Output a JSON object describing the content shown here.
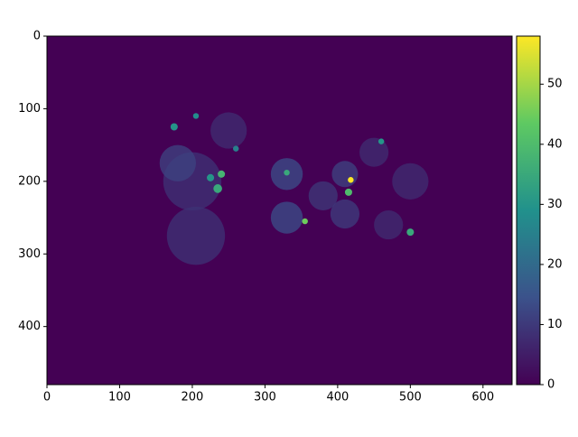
{
  "chart_data": {
    "type": "heatmap",
    "colormap": "viridis",
    "xlim": [
      0,
      640
    ],
    "ylim": [
      480,
      0
    ],
    "xticks": [
      0,
      100,
      200,
      300,
      400,
      500,
      600
    ],
    "yticks": [
      0,
      100,
      200,
      300,
      400
    ],
    "background_value": 0,
    "x": [
      200,
      205,
      180,
      250,
      330,
      330,
      380,
      410,
      410,
      450,
      500,
      470,
      225,
      235,
      240,
      175,
      330,
      355,
      418,
      415,
      500,
      205,
      460,
      260
    ],
    "y": [
      200,
      275,
      175,
      130,
      190,
      250,
      220,
      190,
      245,
      160,
      200,
      260,
      195,
      210,
      190,
      125,
      188,
      255,
      198,
      215,
      270,
      110,
      145,
      155
    ],
    "r": [
      40,
      40,
      25,
      25,
      22,
      22,
      20,
      18,
      20,
      20,
      25,
      20,
      5,
      6,
      5,
      5,
      4,
      4,
      4,
      5,
      5,
      4,
      4,
      4
    ],
    "values": [
      9,
      9,
      12,
      8,
      14,
      14,
      10,
      12,
      11,
      8,
      8,
      8,
      30,
      35,
      38,
      30,
      35,
      45,
      58,
      40,
      35,
      28,
      30,
      25
    ],
    "clim": [
      0,
      58
    ],
    "cticks": [
      0,
      10,
      20,
      30,
      40,
      50
    ]
  }
}
